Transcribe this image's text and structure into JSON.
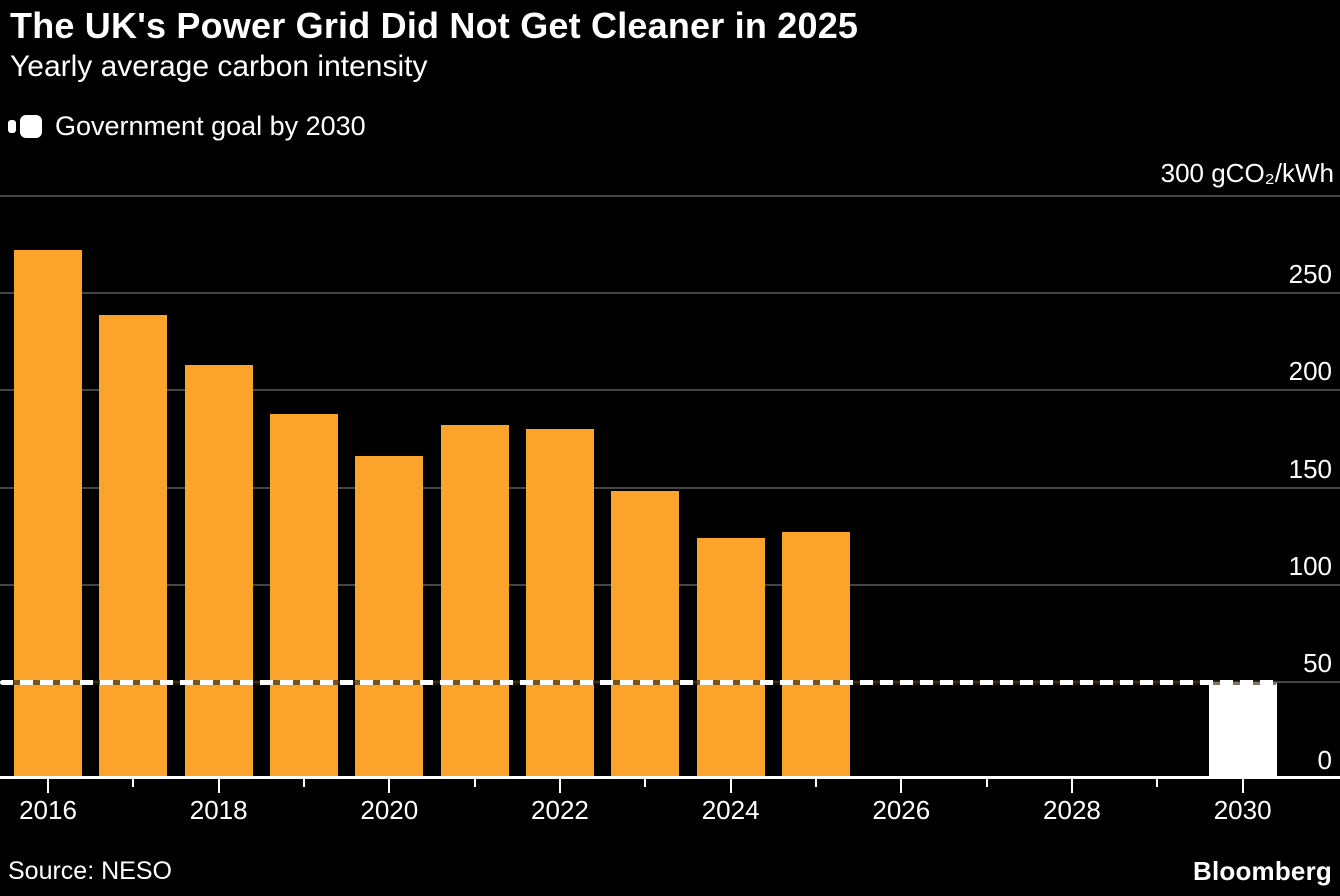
{
  "header": {
    "title": "The UK's Power Grid Did Not Get Cleaner in 2025",
    "subtitle": "Yearly average carbon intensity"
  },
  "legend": {
    "label": "Government goal by 2030",
    "marker": "white-dashed-line-swatch"
  },
  "axis": {
    "unit_top_label": "300 gCO₂/kWh"
  },
  "footer": {
    "source": "Source: NESO",
    "brand": "Bloomberg"
  },
  "colors": {
    "background": "#000000",
    "text": "#FFFFFF",
    "bar_orange": "#FBA32B",
    "goal_white": "#FFFFFF",
    "gridline": "#454545"
  },
  "chart_data": {
    "type": "bar",
    "title": "The UK's Power Grid Did Not Get Cleaner in 2025",
    "subtitle": "Yearly average carbon intensity",
    "ylabel": "gCO₂/kWh",
    "ylim": [
      0,
      300
    ],
    "ytick_interval": 50,
    "yticks": [
      0,
      50,
      100,
      150,
      200,
      250,
      300
    ],
    "ytick_labels_shown": [
      "300 gCO₂/kWh",
      "250",
      "200",
      "150",
      "100",
      "50",
      "0"
    ],
    "grid": "horizontal",
    "legend_position": "top-left",
    "series": [
      {
        "name": "Yearly average carbon intensity",
        "color": "#FBA32B",
        "years": [
          2016,
          2017,
          2018,
          2019,
          2020,
          2021,
          2022,
          2023,
          2024,
          2025
        ],
        "values": [
          272,
          239,
          213,
          188,
          166,
          182,
          180,
          148,
          124,
          127
        ]
      },
      {
        "name": "Government goal by 2030",
        "color": "#FFFFFF",
        "years": [
          2030
        ],
        "values": [
          50
        ]
      }
    ],
    "goal_line": {
      "value": 50,
      "style": "dashed",
      "color": "#FFFFFF",
      "label": "Government goal by 2030",
      "spans_years": [
        2016,
        2030
      ]
    },
    "x_axis": {
      "range_years": [
        2016,
        2030
      ],
      "labeled_ticks": [
        2016,
        2018,
        2020,
        2022,
        2024,
        2026,
        2028,
        2030
      ],
      "minor_ticks": [
        2017,
        2019,
        2021,
        2023,
        2025,
        2027,
        2029
      ]
    }
  }
}
